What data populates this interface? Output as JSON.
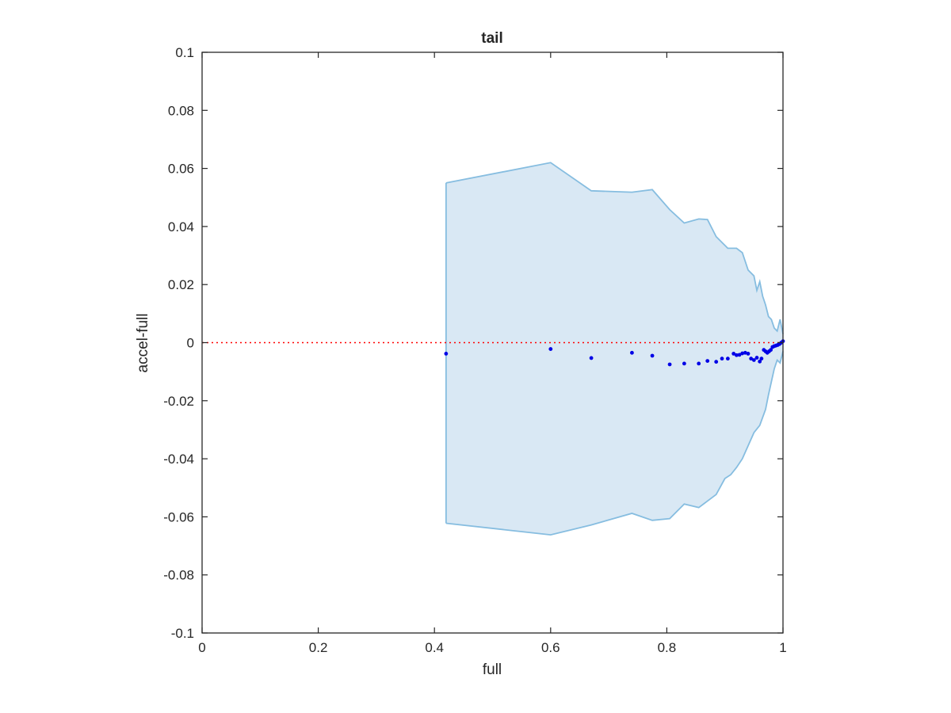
{
  "chart_data": {
    "type": "scatter",
    "title": "tail",
    "xlabel": "full",
    "ylabel": "accel-full",
    "xlim": [
      0,
      1
    ],
    "ylim": [
      -0.1,
      0.1
    ],
    "xticks": [
      0,
      0.2,
      0.4,
      0.6,
      0.8,
      1
    ],
    "xtick_labels": [
      "0",
      "0.2",
      "0.4",
      "0.6",
      "0.8",
      "1"
    ],
    "yticks": [
      -0.1,
      -0.08,
      -0.06,
      -0.04,
      -0.02,
      0,
      0.02,
      0.04,
      0.06,
      0.08,
      0.1
    ],
    "ytick_labels": [
      "-0.1",
      "-0.08",
      "-0.06",
      "-0.04",
      "-0.02",
      "0",
      "0.02",
      "0.04",
      "0.06",
      "0.08",
      "0.1"
    ],
    "grid": false,
    "box": true,
    "reference_line": {
      "y": 0,
      "style": "dotted",
      "color": "#ff0000"
    },
    "band": {
      "fill_color": "#d9e8f4",
      "edge_color": "#86bde0",
      "upper": [
        [
          0.42,
          0.055
        ],
        [
          0.6,
          0.062
        ],
        [
          0.67,
          0.0523
        ],
        [
          0.74,
          0.0518
        ],
        [
          0.775,
          0.0527
        ],
        [
          0.805,
          0.0458
        ],
        [
          0.83,
          0.0412
        ],
        [
          0.855,
          0.0426
        ],
        [
          0.87,
          0.0424
        ],
        [
          0.885,
          0.0365
        ],
        [
          0.905,
          0.0325
        ],
        [
          0.92,
          0.0325
        ],
        [
          0.93,
          0.031
        ],
        [
          0.94,
          0.025
        ],
        [
          0.95,
          0.023
        ],
        [
          0.955,
          0.018
        ],
        [
          0.96,
          0.021
        ],
        [
          0.965,
          0.016
        ],
        [
          0.97,
          0.013
        ],
        [
          0.975,
          0.009
        ],
        [
          0.98,
          0.008
        ],
        [
          0.985,
          0.005
        ],
        [
          0.99,
          0.004
        ],
        [
          0.995,
          0.008
        ],
        [
          1.0,
          0.003
        ]
      ],
      "lower": [
        [
          0.42,
          -0.0622
        ],
        [
          0.6,
          -0.0662
        ],
        [
          0.67,
          -0.0628
        ],
        [
          0.74,
          -0.0588
        ],
        [
          0.775,
          -0.0612
        ],
        [
          0.805,
          -0.0606
        ],
        [
          0.83,
          -0.0556
        ],
        [
          0.855,
          -0.0568
        ],
        [
          0.885,
          -0.0523
        ],
        [
          0.9,
          -0.0468
        ],
        [
          0.91,
          -0.0455
        ],
        [
          0.92,
          -0.043
        ],
        [
          0.93,
          -0.04
        ],
        [
          0.94,
          -0.0355
        ],
        [
          0.95,
          -0.031
        ],
        [
          0.96,
          -0.0285
        ],
        [
          0.97,
          -0.023
        ],
        [
          0.975,
          -0.018
        ],
        [
          0.98,
          -0.0135
        ],
        [
          0.985,
          -0.009
        ],
        [
          0.99,
          -0.006
        ],
        [
          0.995,
          -0.007
        ],
        [
          1.0,
          -0.003
        ]
      ]
    },
    "series": [
      {
        "color": "#0000e6",
        "points": [
          [
            0.42,
            -0.0038
          ],
          [
            0.6,
            -0.0022
          ],
          [
            0.67,
            -0.0053
          ],
          [
            0.74,
            -0.0035
          ],
          [
            0.775,
            -0.0045
          ],
          [
            0.805,
            -0.0075
          ],
          [
            0.83,
            -0.0072
          ],
          [
            0.855,
            -0.0072
          ],
          [
            0.87,
            -0.0063
          ],
          [
            0.885,
            -0.0066
          ],
          [
            0.895,
            -0.0055
          ],
          [
            0.905,
            -0.0055
          ],
          [
            0.915,
            -0.0038
          ],
          [
            0.92,
            -0.0043
          ],
          [
            0.925,
            -0.0042
          ],
          [
            0.93,
            -0.0037
          ],
          [
            0.935,
            -0.0035
          ],
          [
            0.94,
            -0.0038
          ],
          [
            0.945,
            -0.0055
          ],
          [
            0.95,
            -0.006
          ],
          [
            0.955,
            -0.0052
          ],
          [
            0.96,
            -0.0065
          ],
          [
            0.963,
            -0.0055
          ],
          [
            0.967,
            -0.0025
          ],
          [
            0.97,
            -0.003
          ],
          [
            0.973,
            -0.0035
          ],
          [
            0.976,
            -0.003
          ],
          [
            0.979,
            -0.0025
          ],
          [
            0.982,
            -0.0015
          ],
          [
            0.985,
            -0.0012
          ],
          [
            0.988,
            -0.001
          ],
          [
            0.991,
            -0.0008
          ],
          [
            0.994,
            -0.0005
          ],
          [
            0.997,
            0.0
          ],
          [
            1.0,
            0.0005
          ]
        ]
      }
    ]
  }
}
